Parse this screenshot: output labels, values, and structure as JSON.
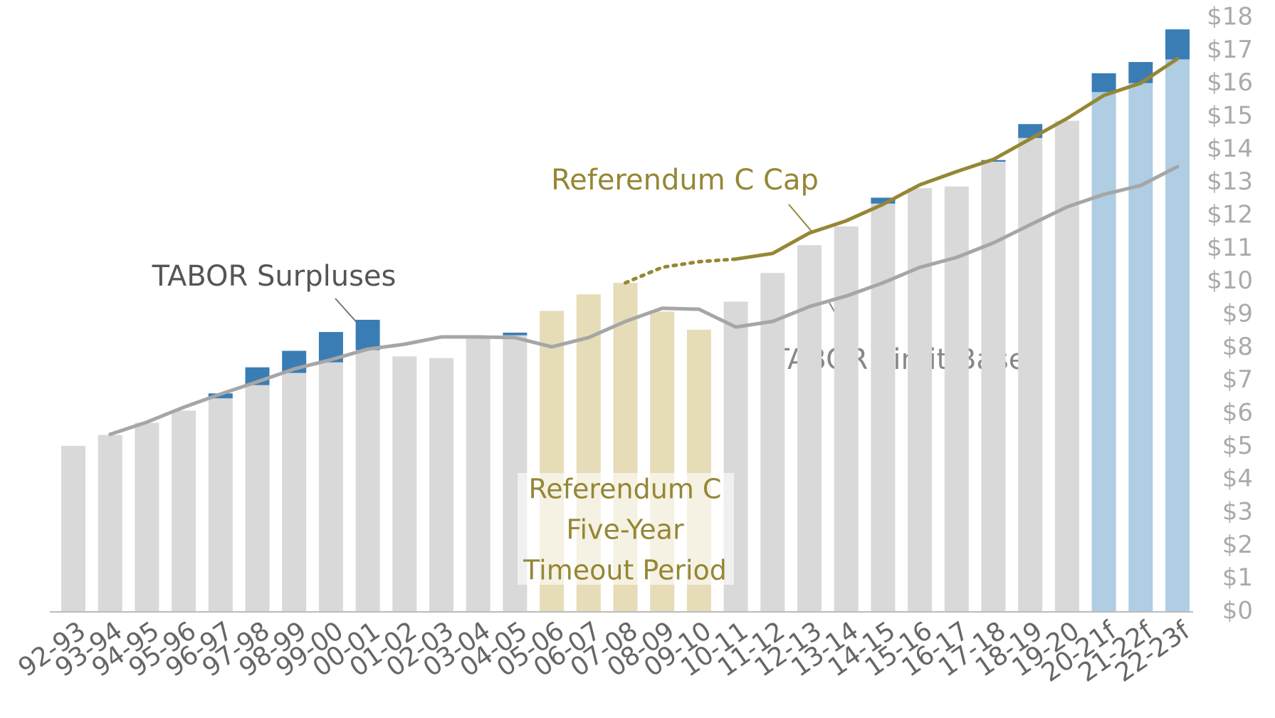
{
  "chart_data": {
    "type": "bar",
    "categories": [
      "92-93",
      "93-94",
      "94-95",
      "95-96",
      "96-97",
      "97-98",
      "98-99",
      "99-00",
      "00-01",
      "01-02",
      "02-03",
      "03-04",
      "04-05",
      "05-06",
      "06-07",
      "07-08",
      "08-09",
      "09-10",
      "10-11",
      "11-12",
      "12-13",
      "13-14",
      "14-15",
      "15-16",
      "16-17",
      "17-18",
      "18-19",
      "19-20",
      "20-21f",
      "21-22f",
      "22-23f"
    ],
    "series": [
      {
        "values": [
          5.03,
          5.36,
          5.73,
          6.1,
          6.47,
          6.87,
          7.24,
          7.56,
          7.93,
          7.74,
          7.69,
          8.31,
          8.38,
          9.12,
          9.62,
          9.97,
          9.1,
          8.55,
          9.4,
          10.27,
          11.11,
          11.68,
          12.37,
          12.84,
          12.89,
          13.64,
          14.36,
          14.88,
          15.75,
          16.02,
          16.74
        ],
        "colors": [
          "#d9d9d9",
          "#d9d9d9",
          "#d9d9d9",
          "#d9d9d9",
          "#d9d9d9",
          "#d9d9d9",
          "#d9d9d9",
          "#d9d9d9",
          "#d9d9d9",
          "#d9d9d9",
          "#d9d9d9",
          "#d9d9d9",
          "#d9d9d9",
          "#e6dcb8",
          "#e6dcb8",
          "#e6dcb8",
          "#e6dcb8",
          "#e6dcb8",
          "#d9d9d9",
          "#d9d9d9",
          "#d9d9d9",
          "#d9d9d9",
          "#d9d9d9",
          "#d9d9d9",
          "#d9d9d9",
          "#d9d9d9",
          "#d9d9d9",
          "#d9d9d9",
          "#afcde3",
          "#afcde3",
          "#afcde3"
        ]
      },
      {
        "name": "TABOR Surpluses",
        "color": "#3a7db5",
        "values": [
          null,
          null,
          null,
          null,
          0.15,
          0.54,
          0.67,
          0.92,
          0.92,
          null,
          null,
          null,
          0.08,
          null,
          null,
          null,
          null,
          null,
          null,
          null,
          null,
          null,
          0.18,
          null,
          null,
          0.05,
          0.42,
          null,
          0.57,
          0.64,
          0.91
        ]
      },
      {
        "name": "TABOR Limit Base",
        "type": "line",
        "color": "#a6a6a6",
        "values": [
          null,
          5.38,
          5.75,
          6.2,
          6.6,
          6.97,
          7.36,
          7.64,
          7.96,
          8.11,
          8.33,
          8.33,
          8.31,
          8.03,
          8.31,
          8.8,
          9.2,
          9.17,
          8.63,
          8.8,
          9.25,
          9.57,
          9.97,
          10.44,
          10.74,
          11.18,
          11.73,
          12.27,
          12.65,
          12.92,
          13.49
        ]
      },
      {
        "name": "Referendum C Cap",
        "type": "line",
        "color": "#958735",
        "dotted_until": "10-11",
        "values": [
          null,
          null,
          null,
          null,
          null,
          null,
          null,
          null,
          null,
          null,
          null,
          null,
          null,
          null,
          null,
          9.97,
          10.44,
          10.61,
          10.69,
          10.86,
          11.48,
          11.85,
          12.35,
          12.94,
          13.34,
          13.71,
          14.33,
          14.95,
          15.65,
          16.02,
          16.76
        ]
      }
    ],
    "annotation_box": [
      "Referendum C",
      "Five-Year",
      "Timeout Period"
    ],
    "ylim": [
      0,
      18
    ],
    "yticks": [
      {
        "value": 0,
        "label": "$0"
      },
      {
        "value": 1,
        "label": "$1"
      },
      {
        "value": 2,
        "label": "$2"
      },
      {
        "value": 3,
        "label": "$3"
      },
      {
        "value": 4,
        "label": "$4"
      },
      {
        "value": 5,
        "label": "$5"
      },
      {
        "value": 6,
        "label": "$6"
      },
      {
        "value": 7,
        "label": "$7"
      },
      {
        "value": 8,
        "label": "$8"
      },
      {
        "value": 9,
        "label": "$9"
      },
      {
        "value": 10,
        "label": "$10"
      },
      {
        "value": 11,
        "label": "$11"
      },
      {
        "value": 12,
        "label": "$12"
      },
      {
        "value": 13,
        "label": "$13"
      },
      {
        "value": 14,
        "label": "$14"
      },
      {
        "value": 15,
        "label": "$15"
      },
      {
        "value": 16,
        "label": "$16"
      },
      {
        "value": 17,
        "label": "$17"
      },
      {
        "value": 18,
        "label": "$18"
      }
    ],
    "y_axis_side": "right",
    "grid": false
  }
}
